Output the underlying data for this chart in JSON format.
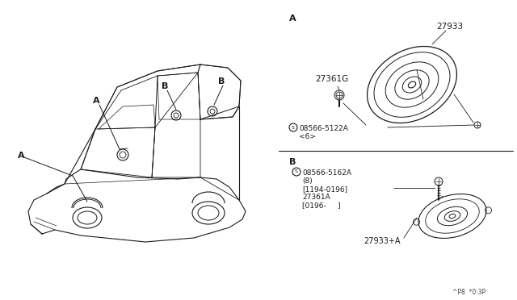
{
  "bg_color": "#ffffff",
  "line_color": "#1a1a1a",
  "section_A_label": "A",
  "section_B_label": "B",
  "part_27933": "27933",
  "part_27361G": "27361G",
  "part_screw_A": "S 08566-5122A",
  "part_screw_A2": "<6>",
  "part_screw_B_line1": "S 08566-5162A",
  "part_screw_B_line2": "(8)",
  "part_date_B": "[1194-0196]",
  "part_27361A": "27361A",
  "part_date_B2": "[0196-     ]",
  "part_27933A": "27933+A",
  "footer": "^P8  *0:3P",
  "car_label_A": "A",
  "car_label_B1": "B",
  "car_label_B2": "B"
}
